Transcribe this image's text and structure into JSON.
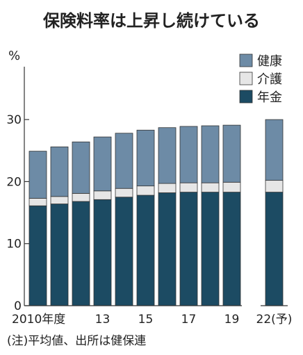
{
  "chart_data": {
    "type": "bar",
    "stacked": true,
    "title": "保険料率は上昇し続けている",
    "ylabel": "%",
    "ylim": [
      0,
      30
    ],
    "yticks": [
      0,
      10,
      20,
      30
    ],
    "categories": [
      "2010",
      "11",
      "12",
      "13",
      "14",
      "15",
      "16",
      "17",
      "18",
      "19",
      "22"
    ],
    "x_tick_labels": [
      "2010年度",
      "",
      "",
      "13",
      "",
      "15",
      "",
      "17",
      "",
      "19",
      "22(予)"
    ],
    "series": [
      {
        "name": "年金",
        "color": "#1c4b63",
        "values": [
          16.1,
          16.4,
          16.8,
          17.1,
          17.5,
          17.8,
          18.2,
          18.3,
          18.3,
          18.3,
          18.3
        ]
      },
      {
        "name": "介護",
        "color": "#e6e6e6",
        "values": [
          1.2,
          1.2,
          1.3,
          1.4,
          1.4,
          1.5,
          1.5,
          1.5,
          1.5,
          1.6,
          1.9
        ]
      },
      {
        "name": "健康",
        "color": "#6d8ba6",
        "values": [
          7.6,
          8.0,
          8.3,
          8.7,
          8.9,
          9.0,
          9.0,
          9.1,
          9.2,
          9.2,
          9.8
        ]
      }
    ],
    "legend_position": "top-right",
    "legend_order": [
      "健康",
      "介護",
      "年金"
    ],
    "grid": false,
    "note": "(注)平均値、出所は健保連"
  }
}
